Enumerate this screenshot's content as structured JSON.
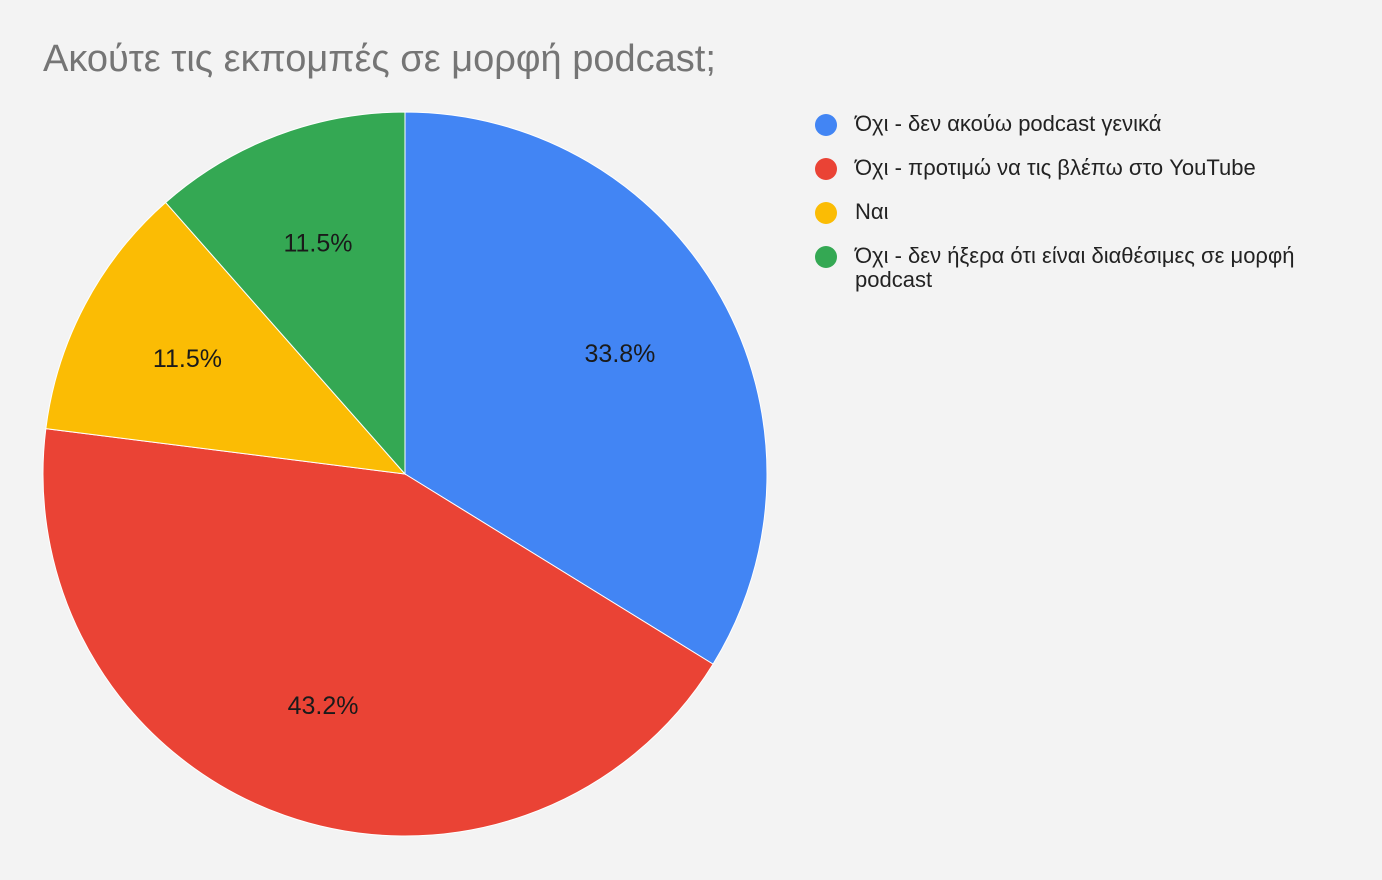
{
  "chart_data": {
    "type": "pie",
    "title": "Ακούτε τις εκπομπές σε μορφή podcast;",
    "legend_position": "right",
    "slices": [
      {
        "label": "Όχι - δεν ακούω podcast γενικά",
        "value": 33.8,
        "display": "33.8%",
        "color": "#4285f4"
      },
      {
        "label": "Όχι - προτιμώ να τις βλέπω στο YouTube",
        "value": 43.2,
        "display": "43.2%",
        "color": "#ea4335"
      },
      {
        "label": "Ναι",
        "value": 11.5,
        "display": "11.5%",
        "color": "#fbbc04"
      },
      {
        "label": "Όχι - δεν ήξερα ότι είναι διαθέσιμες σε μορφή podcast",
        "value": 11.5,
        "display": "11.5%",
        "color": "#34a853"
      }
    ]
  }
}
